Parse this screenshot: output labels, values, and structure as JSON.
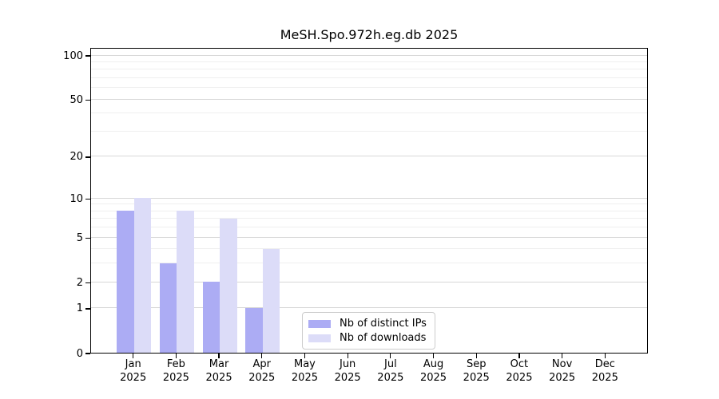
{
  "title": "MeSH.Spo.972h.eg.db 2025",
  "chart_data": {
    "type": "bar",
    "title": "MeSH.Spo.972h.eg.db 2025",
    "categories": [
      "Jan",
      "Feb",
      "Mar",
      "Apr",
      "May",
      "Jun",
      "Jul",
      "Aug",
      "Sep",
      "Oct",
      "Nov",
      "Dec"
    ],
    "year": "2025",
    "series": [
      {
        "name": "Nb of distinct IPs",
        "color": "#acacf4",
        "values": [
          8,
          3,
          2,
          1,
          0,
          0,
          0,
          0,
          0,
          0,
          0,
          0
        ]
      },
      {
        "name": "Nb of downloads",
        "color": "#dcdcf8",
        "values": [
          10,
          8,
          7,
          4,
          0,
          0,
          0,
          0,
          0,
          0,
          0,
          0
        ]
      }
    ],
    "xlabel": "",
    "ylabel": "",
    "ylim": [
      0,
      100
    ],
    "y_scale": "log10(1+v)",
    "y_major_ticks": [
      0,
      1,
      2,
      5,
      10,
      20,
      50,
      100
    ],
    "y_minor_ticks": [
      3,
      4,
      6,
      7,
      8,
      9,
      30,
      40,
      60,
      70,
      80,
      90
    ],
    "grid": true,
    "legend_position": "lower center"
  },
  "colors": {
    "bar_distinct_ips": "#acacf4",
    "bar_downloads": "#dcdcf8",
    "grid_major": "#d7d7d7",
    "grid_minor": "#efefef",
    "axis": "#000000",
    "legend_border": "#cccccc",
    "background": "#ffffff"
  }
}
